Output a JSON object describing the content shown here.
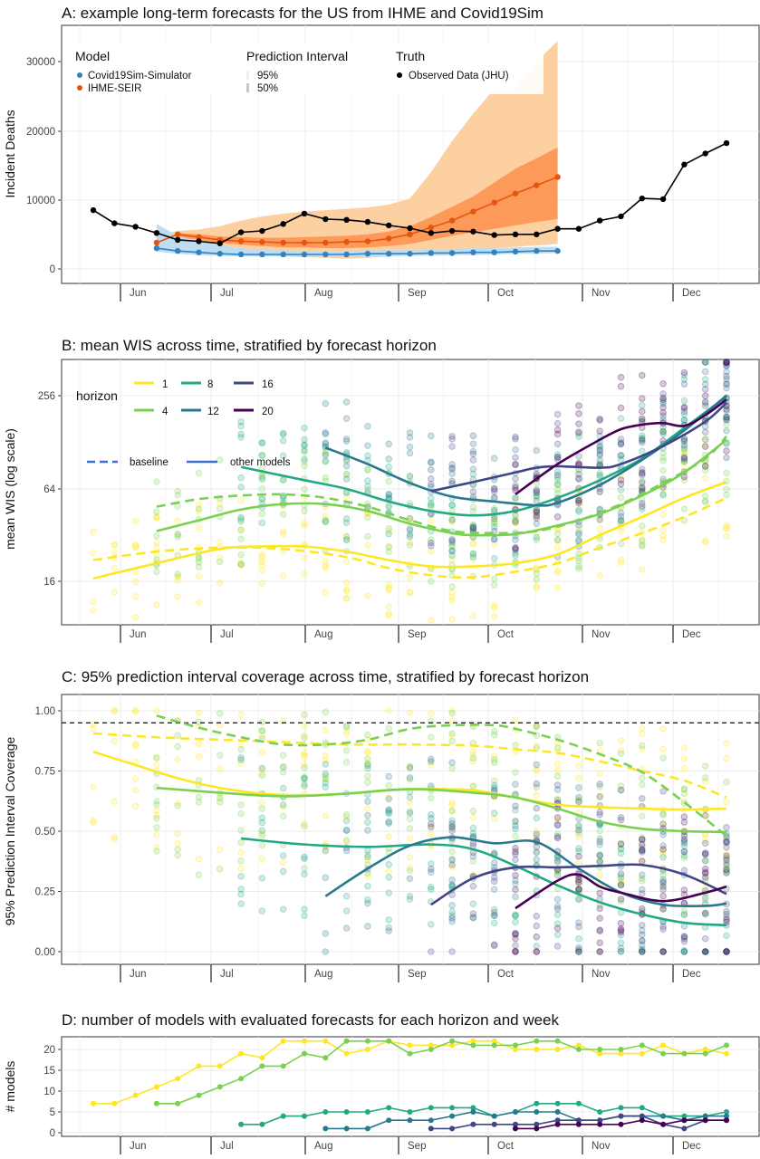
{
  "colors": {
    "h1": "#FDE725",
    "h4": "#7AD151",
    "h8": "#22A884",
    "h12": "#2A788E",
    "h16": "#414487",
    "h20": "#440154",
    "ihme": "#E6550D",
    "ihme95": "#FDD0A2",
    "ihme50": "#FD9A5A",
    "covid": "#3182BD",
    "covidband": "#BFDDF2",
    "truth": "#000000"
  },
  "months": [
    "Jun",
    "Jul",
    "Aug",
    "Sep",
    "Oct",
    "Nov",
    "Dec"
  ],
  "chart_data": [
    {
      "type": "line",
      "id": "A",
      "title": "A: example long-term forecasts for the US from IHME and Covid19Sim",
      "ylabel": "Incident Deaths",
      "ylim": [
        0,
        33000
      ],
      "yticks": [
        "0",
        "10000",
        "20000",
        "30000"
      ],
      "x_unit": "week index (weekly, late May to mid Dec)",
      "legend": {
        "model_title": "Model",
        "models": [
          "Covid19Sim-Simulator",
          "IHME-SEIR"
        ],
        "pi_title": "Prediction Interval",
        "pi": [
          "95%",
          "50%"
        ],
        "truth_title": "Truth",
        "truth": "Observed Data (JHU)"
      },
      "truth": {
        "start": 0,
        "values": [
          8500,
          6600,
          6100,
          5200,
          4200,
          4000,
          3700,
          5300,
          5500,
          6500,
          8000,
          7200,
          7100,
          6800,
          6300,
          5900,
          5200,
          5500,
          5400,
          4900,
          5000,
          5000,
          5800,
          5800,
          7000,
          7600,
          10200,
          10100,
          15100,
          16700,
          18200
        ]
      },
      "ihme": {
        "start": 3,
        "values": [
          3800,
          5000,
          4600,
          4200,
          4000,
          3900,
          3800,
          3800,
          3800,
          3900,
          4000,
          4400,
          5000,
          6000,
          7000,
          8300,
          9600,
          10900,
          12100,
          13300
        ],
        "lo95": [
          3000,
          3500,
          3000,
          2600,
          2300,
          2000,
          1800,
          1700,
          1600,
          1500,
          1600,
          1800,
          2000,
          2300,
          2600,
          2800,
          3000,
          3200,
          3400,
          3600
        ],
        "hi95": [
          4800,
          5500,
          5700,
          6200,
          7000,
          7600,
          8000,
          8300,
          8500,
          8700,
          8900,
          9300,
          10200,
          14000,
          18500,
          22500,
          26000,
          26000,
          30000,
          33000
        ],
        "lo50": [
          3500,
          4600,
          4200,
          3800,
          3500,
          3300,
          3100,
          3100,
          3000,
          3000,
          3100,
          3300,
          3600,
          4200,
          4800,
          5300,
          5800,
          6300,
          6800,
          7200
        ],
        "hi50": [
          4300,
          5200,
          5000,
          4700,
          4600,
          4500,
          4500,
          4600,
          4700,
          4800,
          5000,
          5400,
          6200,
          7500,
          9000,
          10500,
          12500,
          14500,
          16000,
          17600
        ]
      },
      "covid": {
        "start": 3,
        "values": [
          3000,
          2600,
          2400,
          2200,
          2100,
          2100,
          2100,
          2100,
          2100,
          2100,
          2200,
          2200,
          2200,
          2300,
          2300,
          2400,
          2400,
          2500,
          2600,
          2600
        ],
        "lo95": [
          2500,
          2200,
          2000,
          1900,
          1800,
          1800,
          1800,
          1700,
          1700,
          1700,
          1800,
          1800,
          1900,
          1900,
          2000,
          2000,
          2100,
          2200,
          2200,
          2300
        ],
        "hi95": [
          6500,
          4800,
          4000,
          3400,
          3000,
          2800,
          2700,
          2600,
          2600,
          2600,
          2700,
          2700,
          2700,
          2800,
          2900,
          3000,
          3000,
          3100,
          3200,
          3200
        ]
      }
    },
    {
      "type": "line",
      "id": "B",
      "scale": "log",
      "title": "B: mean WIS across time, stratified by forecast horizon",
      "ylabel": "mean WIS (log scale)",
      "yticks": [
        "16",
        "64",
        "256"
      ],
      "ylim": [
        8,
        360
      ],
      "legend": {
        "title": "horizon",
        "horizons": [
          "1",
          "4",
          "8",
          "12",
          "16",
          "20"
        ],
        "baseline": "baseline",
        "other": "other models"
      },
      "series": [
        {
          "horizon": "1",
          "type": "other",
          "x": [
            0,
            3,
            6,
            8,
            10,
            12,
            14,
            16,
            18,
            20,
            22,
            24,
            26,
            28,
            30
          ],
          "y": [
            16.7,
            21,
            26,
            27,
            27,
            25,
            22,
            20,
            20,
            21,
            24,
            32,
            42,
            56,
            71
          ]
        },
        {
          "horizon": "1",
          "type": "baseline",
          "x": [
            0,
            3,
            6,
            9,
            12,
            14,
            16,
            18,
            20,
            22,
            24,
            26,
            28,
            30
          ],
          "y": [
            22,
            25,
            26.5,
            26,
            23,
            19.5,
            17.5,
            17,
            18.5,
            21,
            26.5,
            33,
            42,
            56
          ]
        },
        {
          "horizon": "4",
          "type": "other",
          "x": [
            3,
            5,
            7,
            9,
            11,
            13,
            15,
            17,
            18,
            20,
            22,
            24,
            26,
            28,
            30
          ],
          "y": [
            34,
            40,
            47,
            51,
            51,
            46,
            38,
            33,
            32,
            32.5,
            37,
            44,
            58,
            82,
            134
          ]
        },
        {
          "horizon": "4",
          "type": "baseline",
          "x": [
            3,
            5,
            7,
            9,
            11,
            13,
            15,
            17,
            19,
            21,
            23,
            25,
            27,
            29,
            30
          ],
          "y": [
            49,
            55,
            58,
            59,
            56,
            49,
            40,
            34,
            33,
            34,
            40,
            51,
            70,
            101,
            141
          ]
        },
        {
          "horizon": "8",
          "type": "other",
          "x": [
            7,
            10,
            12,
            14,
            16,
            18,
            20,
            22,
            24,
            26,
            28,
            30
          ],
          "y": [
            89,
            73,
            64,
            53,
            46,
            43,
            46,
            56,
            73,
            101,
            160,
            256
          ]
        },
        {
          "horizon": "12",
          "type": "other",
          "x": [
            11,
            13,
            15,
            17,
            19,
            21,
            22,
            24,
            26,
            28,
            30
          ],
          "y": [
            119,
            93,
            70,
            57,
            53,
            50,
            52,
            68,
            99,
            154,
            260
          ]
        },
        {
          "horizon": "16",
          "type": "other",
          "x": [
            16,
            18,
            20,
            21,
            22,
            24,
            25,
            27,
            29,
            30
          ],
          "y": [
            62,
            71,
            82,
            88,
            90,
            88,
            93,
            122,
            176,
            234
          ]
        },
        {
          "horizon": "20",
          "type": "other",
          "x": [
            20,
            22,
            24,
            25,
            26,
            27,
            28,
            29,
            30
          ],
          "y": [
            59,
            93,
            134,
            157,
            168,
            172,
            165,
            194,
            245
          ]
        }
      ]
    },
    {
      "type": "line",
      "id": "C",
      "title": "C: 95% prediction interval coverage across time, stratified by forecast horizon",
      "ylabel": "95% Prediction Interval Coverage",
      "yticks": [
        "0.00",
        "0.25",
        "0.50",
        "0.75",
        "1.00"
      ],
      "ylim": [
        0,
        1
      ],
      "reference_line": 0.95,
      "series": [
        {
          "horizon": "1",
          "type": "other",
          "x": [
            0,
            2,
            4,
            6,
            8,
            10,
            12,
            14,
            16,
            18,
            20,
            22,
            24,
            26,
            28,
            30
          ],
          "y": [
            0.83,
            0.775,
            0.72,
            0.68,
            0.656,
            0.65,
            0.656,
            0.67,
            0.675,
            0.67,
            0.64,
            0.61,
            0.6,
            0.594,
            0.59,
            0.594
          ]
        },
        {
          "horizon": "1",
          "type": "baseline",
          "x": [
            0,
            3,
            6,
            9,
            12,
            15,
            18,
            20,
            22,
            24,
            26,
            28,
            30
          ],
          "y": [
            0.906,
            0.89,
            0.88,
            0.87,
            0.86,
            0.86,
            0.855,
            0.84,
            0.825,
            0.79,
            0.75,
            0.71,
            0.64
          ]
        },
        {
          "horizon": "4",
          "type": "other",
          "x": [
            3,
            6,
            9,
            12,
            15,
            18,
            20,
            22,
            24,
            26,
            28,
            30
          ],
          "y": [
            0.68,
            0.66,
            0.645,
            0.656,
            0.675,
            0.66,
            0.64,
            0.594,
            0.54,
            0.51,
            0.5,
            0.497
          ]
        },
        {
          "horizon": "4",
          "type": "baseline",
          "x": [
            3,
            5,
            7,
            9,
            11,
            13,
            15,
            17,
            19,
            20,
            22,
            24,
            26,
            28,
            30
          ],
          "y": [
            0.98,
            0.93,
            0.89,
            0.86,
            0.86,
            0.88,
            0.925,
            0.94,
            0.94,
            0.925,
            0.88,
            0.82,
            0.745,
            0.62,
            0.48
          ]
        },
        {
          "horizon": "8",
          "type": "other",
          "x": [
            7,
            10,
            13,
            16,
            18,
            20,
            22,
            24,
            26,
            28,
            30
          ],
          "y": [
            0.47,
            0.445,
            0.435,
            0.445,
            0.425,
            0.356,
            0.275,
            0.205,
            0.155,
            0.12,
            0.11
          ]
        },
        {
          "horizon": "12",
          "type": "other",
          "x": [
            11,
            13,
            15,
            17,
            19,
            21,
            23,
            25,
            27,
            29,
            30
          ],
          "y": [
            0.23,
            0.345,
            0.44,
            0.475,
            0.45,
            0.455,
            0.345,
            0.245,
            0.195,
            0.19,
            0.2
          ]
        },
        {
          "horizon": "16",
          "type": "other",
          "x": [
            16,
            18,
            20,
            22,
            24,
            26,
            28,
            30
          ],
          "y": [
            0.195,
            0.305,
            0.35,
            0.35,
            0.356,
            0.36,
            0.32,
            0.24
          ]
        },
        {
          "horizon": "20",
          "type": "other",
          "x": [
            20,
            22,
            23,
            24,
            25,
            27,
            29,
            30
          ],
          "y": [
            0.18,
            0.295,
            0.32,
            0.27,
            0.245,
            0.21,
            0.245,
            0.27
          ]
        }
      ]
    },
    {
      "type": "line",
      "id": "D",
      "title": "D: number of models with evaluated forecasts for each horizon and week",
      "ylabel": "# models",
      "yticks": [
        "0",
        "5",
        "10",
        "15",
        "20"
      ],
      "ylim": [
        0,
        23
      ],
      "series": [
        {
          "horizon": "1",
          "start": 0,
          "values": [
            7,
            7,
            9,
            11,
            13,
            16,
            16,
            19,
            18,
            22,
            22,
            22,
            19,
            20,
            22,
            21,
            21,
            21,
            22,
            22,
            20,
            20,
            20,
            21,
            19,
            19,
            19,
            21,
            19,
            20,
            19
          ]
        },
        {
          "horizon": "4",
          "start": 3,
          "values": [
            7,
            7,
            9,
            11,
            13,
            16,
            16,
            19,
            18,
            22,
            22,
            22,
            19,
            20,
            22,
            21,
            21,
            21,
            22,
            22,
            20,
            20,
            20,
            21,
            19,
            19,
            19,
            21
          ]
        },
        {
          "horizon": "8",
          "start": 7,
          "values": [
            2,
            2,
            4,
            4,
            5,
            5,
            5,
            6,
            5,
            6,
            6,
            6,
            4,
            5,
            7,
            7,
            7,
            5,
            6,
            6,
            4,
            4,
            4,
            5
          ]
        },
        {
          "horizon": "12",
          "start": 11,
          "values": [
            1,
            1,
            1,
            3,
            3,
            3,
            4,
            5,
            4,
            5,
            5,
            5,
            3,
            3,
            4,
            4,
            4,
            3,
            4,
            4
          ]
        },
        {
          "horizon": "16",
          "start": 16,
          "values": [
            1,
            1,
            2,
            2,
            2,
            2,
            3,
            3,
            3,
            4,
            4,
            2,
            1,
            3,
            3
          ]
        },
        {
          "horizon": "20",
          "start": 20,
          "values": [
            1,
            1,
            2,
            2,
            2,
            2,
            3,
            2,
            3,
            3,
            3
          ]
        }
      ]
    }
  ]
}
